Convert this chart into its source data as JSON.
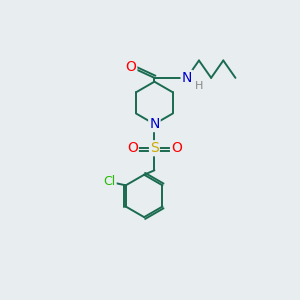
{
  "background_color": "#e8edf0",
  "bond_color": "#1a6b50",
  "atom_colors": {
    "O": "#ff0000",
    "N": "#0000cc",
    "S": "#ccaa00",
    "Cl": "#22bb00",
    "H": "#888888",
    "C": "#1a6b50"
  },
  "line_width": 1.4,
  "font_size": 8.5,
  "fig_size": [
    3.0,
    3.0
  ],
  "dpi": 100
}
